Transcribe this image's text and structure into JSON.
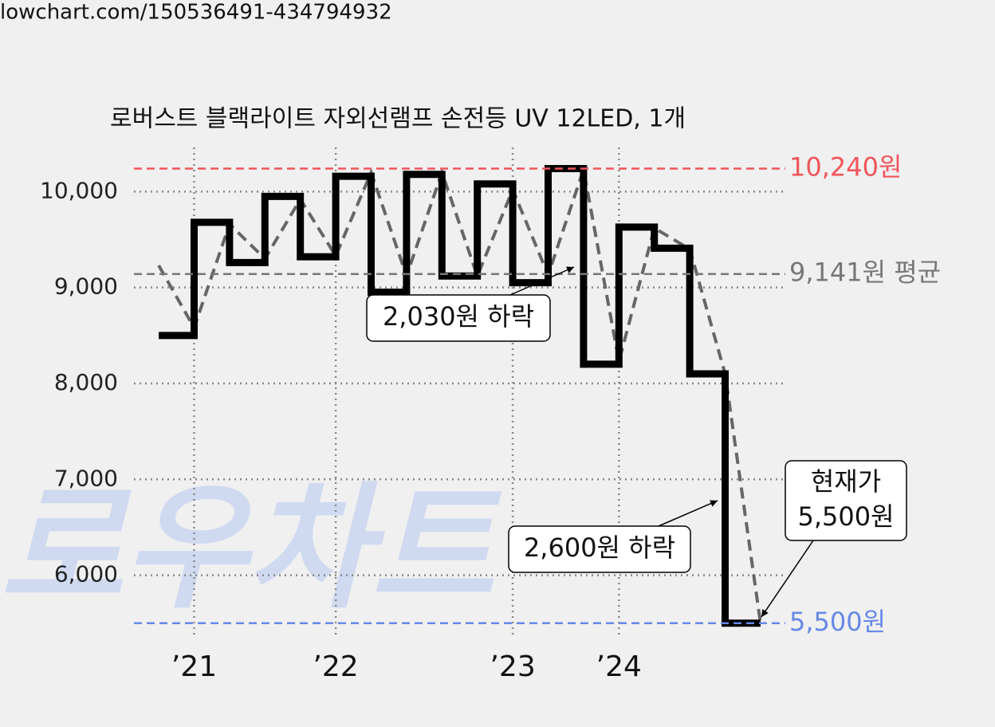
{
  "header": {
    "url": "lowchart.com/150536491-434794932"
  },
  "watermark": "로우차트",
  "chart_data": {
    "type": "line",
    "title": "로버스트 블랙라이트 자외선램프 손전등 UV 12LED, 1개",
    "xlim": [
      -0.7,
      17.7
    ],
    "xticks": [
      {
        "value": 1,
        "label": "’21"
      },
      {
        "value": 5,
        "label": "’22"
      },
      {
        "value": 10,
        "label": "’23"
      },
      {
        "value": 13,
        "label": "’24"
      }
    ],
    "ylim": [
      5340,
      10460
    ],
    "yticks": [
      {
        "value": 6000,
        "label": "6,000"
      },
      {
        "value": 7000,
        "label": "7,000"
      },
      {
        "value": 8000,
        "label": "8,000"
      },
      {
        "value": 9000,
        "label": "9,000"
      },
      {
        "value": 10000,
        "label": "10,000"
      }
    ],
    "grid": true,
    "x": [
      0,
      1,
      2,
      3,
      4,
      5,
      6,
      7,
      8,
      9,
      10,
      11,
      12,
      13,
      14,
      15,
      16,
      17
    ],
    "series": [
      {
        "color": "#000000",
        "drawstyle": "steps-post",
        "linestyle": "solid",
        "values": [
          8500,
          9680,
          9260,
          9950,
          9320,
          10160,
          8950,
          10180,
          9120,
          10080,
          9050,
          10240,
          8200,
          9630,
          9410,
          8100,
          5500,
          5500
        ]
      },
      {
        "color": "#666666",
        "drawstyle": "default",
        "linestyle": "dashed",
        "values": [
          9230,
          8580,
          9660,
          9300,
          9920,
          9330,
          10200,
          9120,
          10200,
          9120,
          10020,
          9130,
          10230,
          8230,
          9620,
          9400,
          8100,
          5500
        ]
      }
    ],
    "reference_lines": [
      {
        "value": 10240,
        "label": "10,240원",
        "color": "#f0555a"
      },
      {
        "value": 9141,
        "label": "9,141원 평균",
        "color": "#777777"
      },
      {
        "value": 5500,
        "label": "5,500원",
        "color": "#6688e8"
      }
    ],
    "annotations": [
      {
        "text": [
          "2,030원 하락"
        ]
      },
      {
        "text": [
          "2,600원 하락"
        ]
      },
      {
        "text": [
          "현재가",
          "5,500원"
        ]
      }
    ]
  }
}
